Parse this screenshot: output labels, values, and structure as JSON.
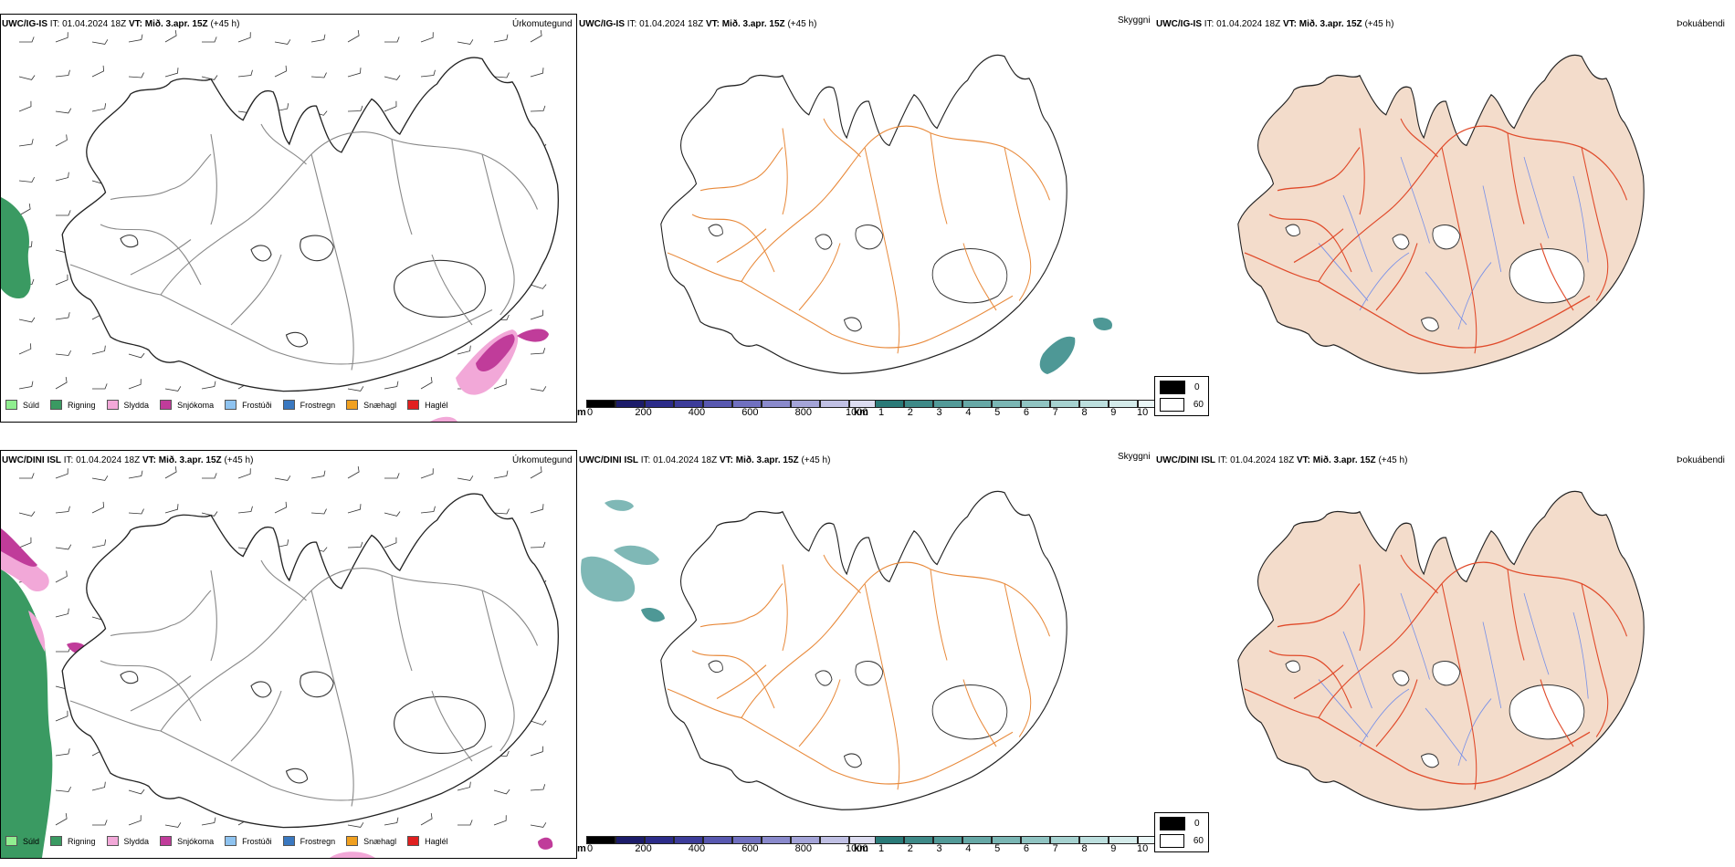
{
  "rows": [
    {
      "model": "UWC/IG-IS",
      "it_label": "IT:",
      "it_value": "01.04.2024 18Z",
      "vt_label": "VT:",
      "vt_value": "Mið. 3.apr. 15Z",
      "lead": "(+45 h)"
    },
    {
      "model": "UWC/DINI ISL",
      "it_label": "IT:",
      "it_value": "01.04.2024 18Z",
      "vt_label": "VT:",
      "vt_value": "Mið. 3.apr. 15Z",
      "lead": "(+45 h)"
    }
  ],
  "panel_titles": {
    "precip": "Úrkomutegund",
    "visibility": "Skyggni",
    "fog": "Þokuábendi"
  },
  "precip_legend": [
    {
      "label": "Súld",
      "color": "#90ee90"
    },
    {
      "label": "Rigning",
      "color": "#3a9a62"
    },
    {
      "label": "Slydda",
      "color": "#f2a8d8"
    },
    {
      "label": "Snjókoma",
      "color": "#c03c9a"
    },
    {
      "label": "Frostúði",
      "color": "#8ec3f0"
    },
    {
      "label": "Frostregn",
      "color": "#3a78c0"
    },
    {
      "label": "Snæhagl",
      "color": "#f0a020"
    },
    {
      "label": "Haglél",
      "color": "#e02020"
    }
  ],
  "height_bar": {
    "unit": "m",
    "ticks": [
      "0",
      "200",
      "400",
      "600",
      "800",
      "1000"
    ],
    "colors": [
      "#000000",
      "#1c1c6a",
      "#2c2c8a",
      "#3c3c9a",
      "#5858b0",
      "#7070c0",
      "#8a8acc",
      "#a4a4d8",
      "#c0c0e4",
      "#dcdcf0"
    ]
  },
  "visibility_bar": {
    "unit": "km",
    "ticks": [
      "1",
      "2",
      "3",
      "4",
      "5",
      "6",
      "7",
      "8",
      "9",
      "10"
    ],
    "colors": [
      "#2a7a78",
      "#3e8a88",
      "#529a98",
      "#66a8a6",
      "#7ab6b4",
      "#90c4c2",
      "#a6d2d0",
      "#bcdfde",
      "#d4ebea",
      "#eaf6f6"
    ]
  },
  "fog_legend": [
    {
      "label": "0",
      "color": "#000000"
    },
    {
      "label": "60",
      "color": "#ffffff"
    }
  ],
  "colors": {
    "road": "#e8893a",
    "fog_land": "#f3dccb",
    "fog_roads": "#e04a2a",
    "rivers": "#7890e8",
    "rain": "#3a9a62",
    "snow": "#c03c9a",
    "sleet": "#f2a8d8",
    "vis": "#4e9896"
  }
}
